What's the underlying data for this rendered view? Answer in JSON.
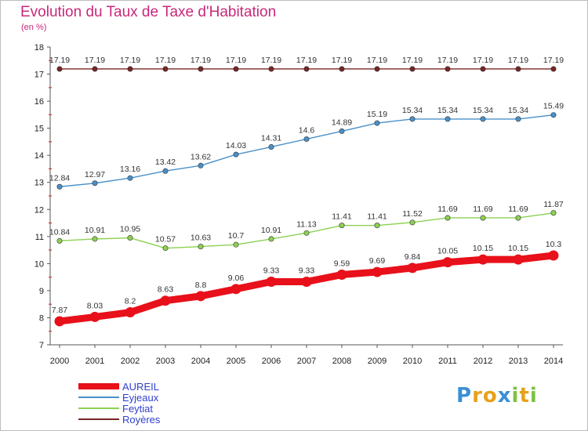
{
  "header": {
    "title": "Evolution du Taux de Taxe d'Habitation",
    "subtitle": "(en %)"
  },
  "logo": {
    "letters": [
      "P",
      "r",
      "o",
      "x",
      "i",
      "t",
      "i"
    ],
    "colors": [
      "#3a8fd6",
      "#e8a11a",
      "#e8a11a",
      "#3a8fd6",
      "#7cc242",
      "#e8a11a",
      "#7cc242"
    ]
  },
  "chart_data": {
    "type": "line",
    "x": [
      "2000",
      "2001",
      "2002",
      "2003",
      "2004",
      "2005",
      "2006",
      "2007",
      "2008",
      "2009",
      "2010",
      "2011",
      "2012",
      "2013",
      "2014"
    ],
    "ylim": [
      7,
      18
    ],
    "yticks": [
      "7",
      "8",
      "9",
      "10",
      "11",
      "12",
      "13",
      "14",
      "15",
      "16",
      "17",
      "18"
    ],
    "grid": false,
    "legend_position": "bottom-left",
    "series": [
      {
        "name": "Royères",
        "color": "#7a2424",
        "values": [
          17.19,
          17.19,
          17.19,
          17.19,
          17.19,
          17.19,
          17.19,
          17.19,
          17.19,
          17.19,
          17.19,
          17.19,
          17.19,
          17.19,
          17.19
        ],
        "labels": [
          "17.19",
          "17.19",
          "17.19",
          "17.19",
          "17.19",
          "17.19",
          "17.19",
          "17.19",
          "17.19",
          "17.19",
          "17.19",
          "17.19",
          "17.19",
          "17.19",
          "17.19"
        ]
      },
      {
        "name": "Eyjeaux",
        "color": "#4a90c8",
        "values": [
          12.84,
          12.97,
          13.16,
          13.42,
          13.62,
          14.03,
          14.31,
          14.6,
          14.89,
          15.19,
          15.34,
          15.34,
          15.34,
          15.34,
          15.49
        ],
        "labels": [
          "12.84",
          "12.97",
          "13.16",
          "13.42",
          "13.62",
          "14.03",
          "14.31",
          "14.6",
          "14.89",
          "15.19",
          "15.34",
          "15.34",
          "15.34",
          "15.34",
          "15.49"
        ]
      },
      {
        "name": "Feytiat",
        "color": "#8cd152",
        "values": [
          10.84,
          10.91,
          10.95,
          10.57,
          10.63,
          10.7,
          10.91,
          11.13,
          11.41,
          11.41,
          11.52,
          11.69,
          11.69,
          11.69,
          11.87
        ],
        "labels": [
          "10.84",
          "10.91",
          "10.95",
          "10.57",
          "10.63",
          "10.7",
          "10.91",
          "11.13",
          "11.41",
          "11.41",
          "11.52",
          "11.69",
          "11.69",
          "11.69",
          "11.87"
        ]
      },
      {
        "name": "AUREIL",
        "color": "#e8101a",
        "values": [
          7.87,
          8.03,
          8.2,
          8.63,
          8.8,
          9.06,
          9.33,
          9.33,
          9.59,
          9.69,
          9.84,
          10.05,
          10.15,
          10.15,
          10.3
        ],
        "labels": [
          "7.87",
          "8.03",
          "8.2",
          "8.63",
          "8.8",
          "9.06",
          "9.33",
          "9.33",
          "9.59",
          "9.69",
          "9.84",
          "10.05",
          "10.15",
          "10.15",
          "10.3"
        ]
      }
    ],
    "legend": [
      "AUREIL",
      "Eyjeaux",
      "Feytiat",
      "Royères"
    ]
  }
}
